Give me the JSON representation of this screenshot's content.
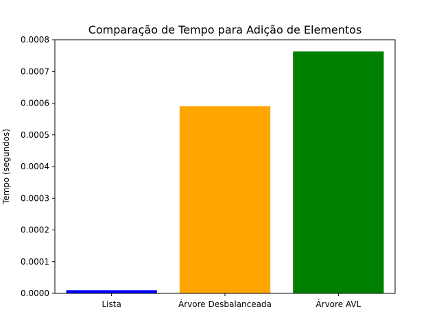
{
  "chart_data": {
    "type": "bar",
    "title": "Comparação de Tempo para Adição de Elementos",
    "xlabel": "",
    "ylabel": "Tempo (segundos)",
    "categories": [
      "Lista",
      "Árvore Desbalanceada",
      "Árvore AVL"
    ],
    "values": [
      1e-05,
      0.00059,
      0.000763
    ],
    "colors": [
      "#0000ff",
      "#ffa500",
      "#008000"
    ],
    "ylim": [
      0,
      0.0008
    ],
    "yticks": [
      "0.0000",
      "0.0001",
      "0.0002",
      "0.0003",
      "0.0004",
      "0.0005",
      "0.0006",
      "0.0007",
      "0.0008"
    ],
    "grid": false,
    "legend": "none"
  }
}
